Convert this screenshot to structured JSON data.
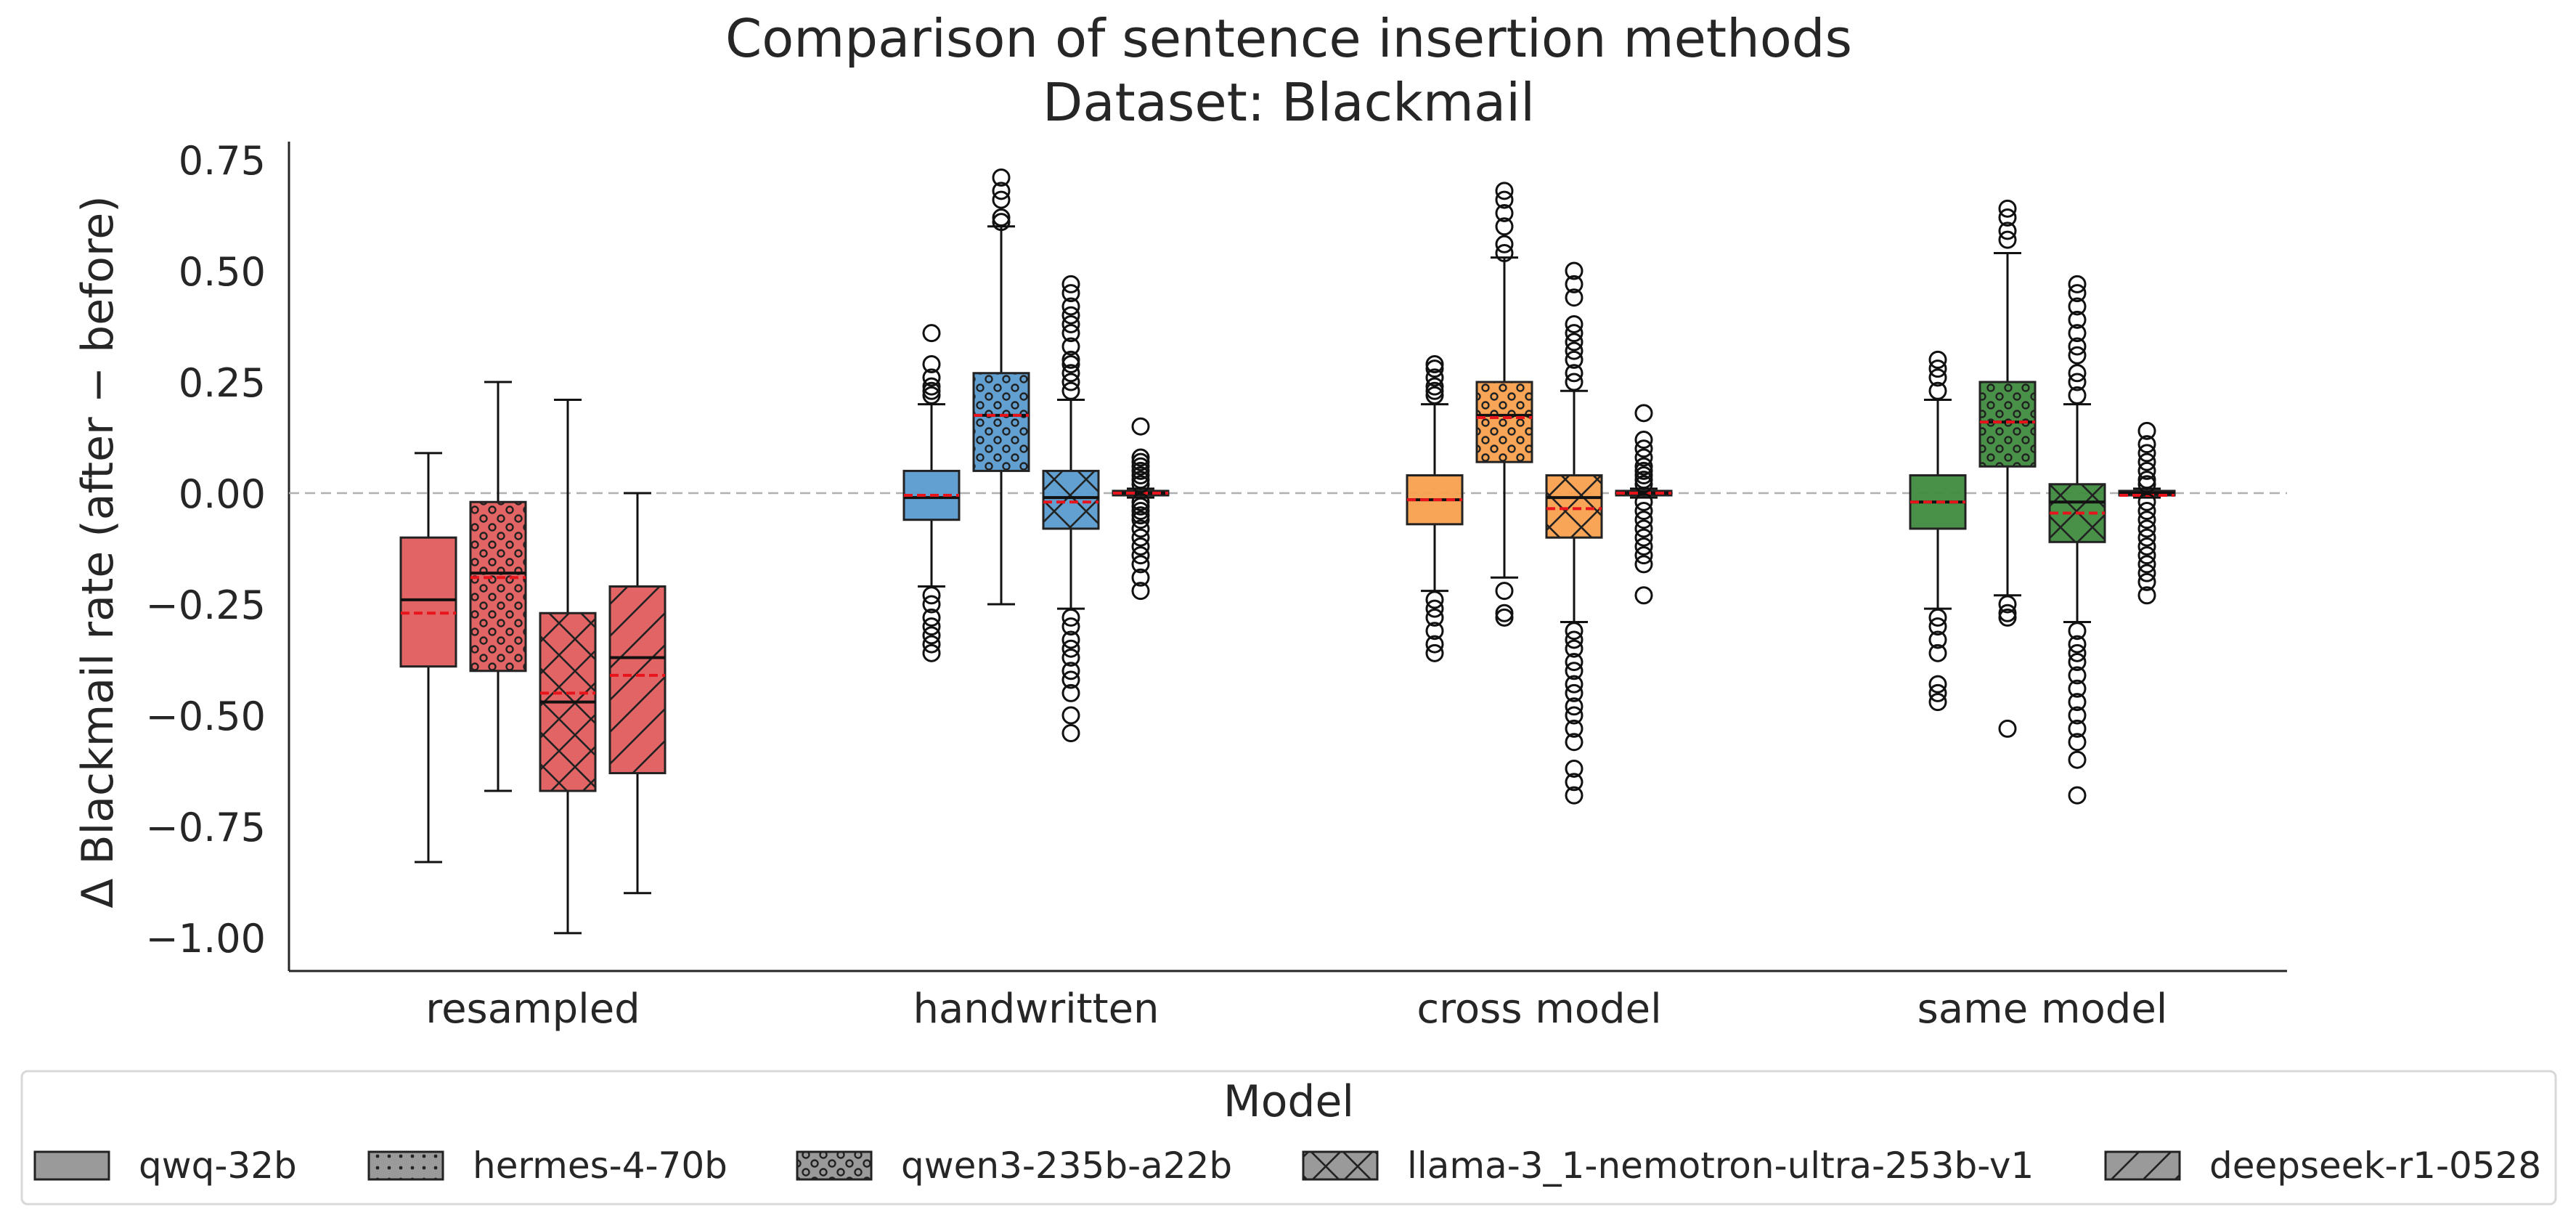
{
  "chart_data": {
    "type": "box",
    "title": "Comparison of sentence insertion methods",
    "subtitle": "Dataset: Blackmail",
    "xlabel": "",
    "ylabel": "Δ Blackmail rate (after − before)",
    "ylim": [
      -1.05,
      0.79
    ],
    "yticks": [
      0.75,
      0.5,
      0.25,
      0.0,
      -0.25,
      -0.5,
      -0.75,
      -1.0
    ],
    "ytick_labels": [
      "0.75",
      "0.50",
      "0.25",
      "0.00",
      "−0.25",
      "−0.50",
      "−0.75",
      "−1.00"
    ],
    "categories": [
      "resampled",
      "handwritten",
      "cross model",
      "same model"
    ],
    "category_colors": [
      "#e05c5c",
      "#5a9bcf",
      "#f9a04e",
      "#3f8a3f"
    ],
    "reference_line": 0.0,
    "legend": {
      "title": "Model",
      "placement": "bottom",
      "entries": [
        {
          "label": "qwq-32b",
          "hatch": "none"
        },
        {
          "label": "hermes-4-70b",
          "hatch": "dots"
        },
        {
          "label": "qwen3-235b-a22b",
          "hatch": "circles"
        },
        {
          "label": "llama-3_1-nemotron-ultra-253b-v1",
          "hatch": "cross"
        },
        {
          "label": "deepseek-r1-0528",
          "hatch": "diagonal"
        }
      ]
    },
    "series": [
      {
        "name": "qwq-32b",
        "boxes": [
          {
            "category": "resampled",
            "whislo": -0.83,
            "q1": -0.39,
            "median": -0.24,
            "mean": -0.27,
            "q3": -0.1,
            "whishi": 0.09,
            "fliers": []
          },
          {
            "category": "handwritten",
            "whislo": -0.21,
            "q1": -0.06,
            "median": -0.01,
            "mean": -0.005,
            "q3": 0.05,
            "whishi": 0.2,
            "fliers": [
              0.22,
              0.23,
              0.24,
              0.26,
              0.29,
              0.36,
              -0.23,
              -0.25,
              -0.28,
              -0.3,
              -0.32,
              -0.34,
              -0.36
            ]
          },
          {
            "category": "cross model",
            "whislo": -0.22,
            "q1": -0.07,
            "median": -0.015,
            "mean": -0.015,
            "q3": 0.04,
            "whishi": 0.2,
            "fliers": [
              0.22,
              0.23,
              0.24,
              0.26,
              0.28,
              0.29,
              -0.24,
              -0.26,
              -0.28,
              -0.31,
              -0.34,
              -0.36
            ]
          },
          {
            "category": "same model",
            "whislo": -0.26,
            "q1": -0.08,
            "median": -0.02,
            "mean": -0.02,
            "q3": 0.04,
            "whishi": 0.21,
            "fliers": [
              0.23,
              0.26,
              0.28,
              0.3,
              -0.28,
              -0.3,
              -0.33,
              -0.36,
              -0.43,
              -0.45,
              -0.47
            ]
          }
        ]
      },
      {
        "name": "qwen3-235b-a22b",
        "boxes": [
          {
            "category": "resampled",
            "whislo": -0.67,
            "q1": -0.4,
            "median": -0.18,
            "mean": -0.19,
            "q3": -0.02,
            "whishi": 0.25,
            "fliers": []
          },
          {
            "category": "handwritten",
            "whislo": -0.25,
            "q1": 0.05,
            "median": 0.175,
            "mean": 0.175,
            "q3": 0.27,
            "whishi": 0.6,
            "fliers": [
              0.61,
              0.62,
              0.66,
              0.68,
              0.71
            ]
          },
          {
            "category": "cross model",
            "whislo": -0.19,
            "q1": 0.07,
            "median": 0.175,
            "mean": 0.17,
            "q3": 0.25,
            "whishi": 0.53,
            "fliers": [
              0.54,
              0.56,
              0.6,
              0.63,
              0.66,
              0.68,
              -0.22,
              -0.27,
              -0.28
            ]
          },
          {
            "category": "same model",
            "whislo": -0.23,
            "q1": 0.06,
            "median": 0.16,
            "mean": 0.16,
            "q3": 0.25,
            "whishi": 0.54,
            "fliers": [
              0.57,
              0.59,
              0.62,
              0.64,
              -0.25,
              -0.27,
              -0.28,
              -0.53
            ]
          }
        ]
      },
      {
        "name": "llama-3_1-nemotron-ultra-253b-v1",
        "boxes": [
          {
            "category": "resampled",
            "whislo": -0.99,
            "q1": -0.67,
            "median": -0.47,
            "mean": -0.45,
            "q3": -0.27,
            "whishi": 0.21,
            "fliers": []
          },
          {
            "category": "handwritten",
            "whislo": -0.26,
            "q1": -0.08,
            "median": -0.01,
            "mean": -0.02,
            "q3": 0.05,
            "whishi": 0.21,
            "fliers": [
              0.23,
              0.25,
              0.27,
              0.29,
              0.3,
              0.33,
              0.36,
              0.38,
              0.4,
              0.42,
              0.45,
              0.47,
              -0.28,
              -0.3,
              -0.33,
              -0.35,
              -0.37,
              -0.4,
              -0.42,
              -0.45,
              -0.5,
              -0.54
            ]
          },
          {
            "category": "cross model",
            "whislo": -0.29,
            "q1": -0.1,
            "median": -0.01,
            "mean": -0.035,
            "q3": 0.04,
            "whishi": 0.23,
            "fliers": [
              0.25,
              0.27,
              0.3,
              0.32,
              0.34,
              0.36,
              0.38,
              0.44,
              0.47,
              0.5,
              -0.31,
              -0.33,
              -0.35,
              -0.38,
              -0.4,
              -0.43,
              -0.45,
              -0.48,
              -0.5,
              -0.53,
              -0.56,
              -0.62,
              -0.65,
              -0.68
            ]
          },
          {
            "category": "same model",
            "whislo": -0.29,
            "q1": -0.11,
            "median": -0.02,
            "mean": -0.045,
            "q3": 0.02,
            "whishi": 0.2,
            "fliers": [
              0.22,
              0.25,
              0.27,
              0.31,
              0.33,
              0.36,
              0.39,
              0.42,
              0.45,
              0.47,
              -0.31,
              -0.34,
              -0.36,
              -0.38,
              -0.41,
              -0.44,
              -0.47,
              -0.5,
              -0.53,
              -0.56,
              -0.6,
              -0.68
            ]
          }
        ]
      },
      {
        "name": "deepseek-r1-0528",
        "boxes": [
          {
            "category": "resampled",
            "whislo": -0.9,
            "q1": -0.63,
            "median": -0.37,
            "mean": -0.41,
            "q3": -0.21,
            "whishi": 0.0,
            "fliers": []
          },
          {
            "category": "handwritten",
            "whislo": -0.01,
            "q1": -0.005,
            "median": 0.0,
            "mean": 0.0,
            "q3": 0.005,
            "whishi": 0.01,
            "fliers": [
              0.02,
              0.03,
              0.04,
              0.05,
              0.06,
              0.07,
              0.08,
              0.15,
              -0.02,
              -0.03,
              -0.04,
              -0.05,
              -0.06,
              -0.08,
              -0.1,
              -0.12,
              -0.14,
              -0.16,
              -0.19,
              -0.22
            ]
          },
          {
            "category": "cross model",
            "whislo": -0.01,
            "q1": -0.005,
            "median": 0.0,
            "mean": 0.0,
            "q3": 0.005,
            "whishi": 0.01,
            "fliers": [
              0.02,
              0.03,
              0.04,
              0.05,
              0.06,
              0.08,
              0.1,
              0.12,
              0.18,
              -0.02,
              -0.04,
              -0.06,
              -0.08,
              -0.1,
              -0.12,
              -0.14,
              -0.16,
              -0.23
            ]
          },
          {
            "category": "same model",
            "whislo": -0.01,
            "q1": -0.005,
            "median": 0.0,
            "mean": -0.005,
            "q3": 0.005,
            "whishi": 0.01,
            "fliers": [
              0.02,
              0.03,
              0.05,
              0.07,
              0.09,
              0.11,
              0.14,
              -0.02,
              -0.04,
              -0.06,
              -0.08,
              -0.1,
              -0.12,
              -0.14,
              -0.16,
              -0.18,
              -0.2,
              -0.23
            ]
          }
        ]
      }
    ]
  }
}
